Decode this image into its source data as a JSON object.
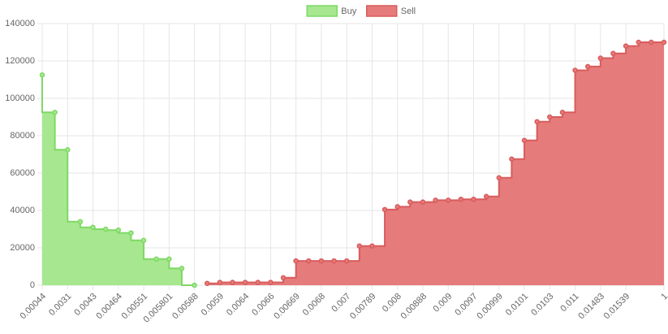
{
  "chart_data": {
    "type": "stepped-area",
    "categories": [
      "0.00044",
      null,
      "0.0031",
      null,
      "0.0043",
      null,
      "0.00464",
      null,
      "0.00551",
      null,
      "0.005801",
      null,
      "0.00588",
      null,
      "0.0059",
      null,
      "0.0064",
      null,
      "0.0066",
      null,
      "0.00669",
      null,
      "0.0068",
      null,
      "0.007",
      null,
      "0.00789",
      null,
      "0.008",
      null,
      "0.00888",
      null,
      "0.009",
      null,
      "0.0097",
      null,
      "0.00999",
      null,
      "0.0101",
      null,
      "0.0103",
      null,
      "0.011",
      null,
      "0.01483",
      null,
      "0.01539",
      null,
      null,
      "1"
    ],
    "series": [
      {
        "name": "Buy",
        "color": "#a6e78f",
        "border": "#7fd865",
        "step": "vertical-first",
        "values": [
          112500,
          92500,
          72500,
          34000,
          31000,
          30000,
          29500,
          28000,
          24000,
          14000,
          14000,
          9000,
          0,
          null,
          null,
          null,
          null,
          null,
          null,
          null,
          null,
          null,
          null,
          null,
          null,
          null,
          null,
          null,
          null,
          null,
          null,
          null,
          null,
          null,
          null,
          null,
          null,
          null,
          null,
          null,
          null,
          null,
          null,
          null,
          null,
          null,
          null,
          null,
          null,
          null
        ]
      },
      {
        "name": "Sell",
        "color": "#e67b7b",
        "border": "#d85c5c",
        "step": "horizontal-first",
        "values": [
          null,
          null,
          null,
          null,
          null,
          null,
          null,
          null,
          null,
          null,
          null,
          null,
          null,
          1000,
          1500,
          1500,
          1500,
          1500,
          1500,
          4000,
          13000,
          13000,
          13000,
          13000,
          13000,
          21000,
          21000,
          40500,
          42000,
          44500,
          44500,
          45500,
          45500,
          46000,
          46000,
          47500,
          57500,
          67500,
          77500,
          87500,
          90000,
          92500,
          115000,
          117000,
          121500,
          124000,
          128000,
          130000,
          130000,
          130000
        ]
      }
    ],
    "ylim": [
      0,
      140000
    ],
    "yticks": [
      0,
      20000,
      40000,
      60000,
      80000,
      100000,
      120000,
      140000
    ],
    "grid": true,
    "legend": "top"
  }
}
